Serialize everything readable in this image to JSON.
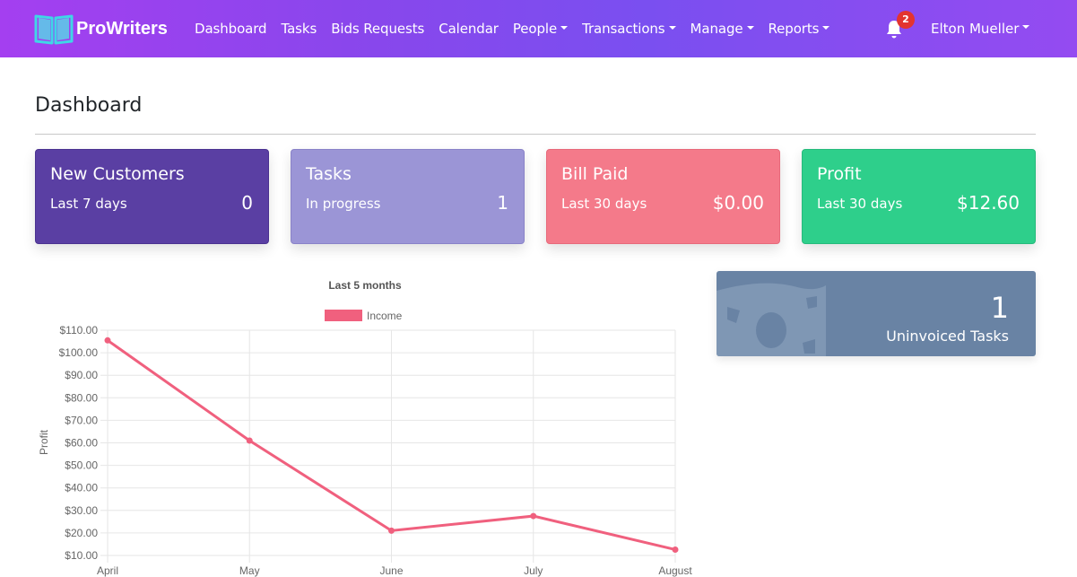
{
  "nav": {
    "brand": "ProWriters",
    "links": [
      {
        "label": "Dashboard",
        "dropdown": false
      },
      {
        "label": "Tasks",
        "dropdown": false
      },
      {
        "label": "Bids Requests",
        "dropdown": false
      },
      {
        "label": "Calendar",
        "dropdown": false
      },
      {
        "label": "People",
        "dropdown": true
      },
      {
        "label": "Transactions",
        "dropdown": true
      },
      {
        "label": "Manage",
        "dropdown": true
      },
      {
        "label": "Reports",
        "dropdown": true
      }
    ],
    "notification_count": "2",
    "user_name": "Elton Mueller"
  },
  "page": {
    "title": "Dashboard"
  },
  "cards": [
    {
      "title": "New Customers",
      "subtitle": "Last 7 days",
      "value": "0",
      "color": "#5a3fa3"
    },
    {
      "title": "Tasks",
      "subtitle": "In progress",
      "value": "1",
      "color": "#9b95d6"
    },
    {
      "title": "Bill Paid",
      "subtitle": "Last 30 days",
      "value": "$0.00",
      "color": "#f47a8a"
    },
    {
      "title": "Profit",
      "subtitle": "Last 30 days",
      "value": "$12.60",
      "color": "#2ecf8b"
    }
  ],
  "uninvoiced": {
    "value": "1",
    "label": "Uninvoiced Tasks",
    "icon": "money-bill-icon",
    "color": "#6983a4"
  },
  "chart_data": {
    "type": "line",
    "title": "Last 5 months",
    "xlabel": "",
    "ylabel": "Profit",
    "categories": [
      "April",
      "May",
      "June",
      "July",
      "August"
    ],
    "series": [
      {
        "name": "Income",
        "values": [
          105.5,
          61.0,
          21.0,
          27.5,
          12.6
        ],
        "color": "#f0607e"
      }
    ],
    "ylim": [
      10,
      110
    ],
    "yticks": [
      "$110.00",
      "$100.00",
      "$90.00",
      "$80.00",
      "$70.00",
      "$60.00",
      "$50.00",
      "$40.00",
      "$30.00",
      "$20.00",
      "$10.00"
    ],
    "grid": true,
    "legend": "top"
  }
}
